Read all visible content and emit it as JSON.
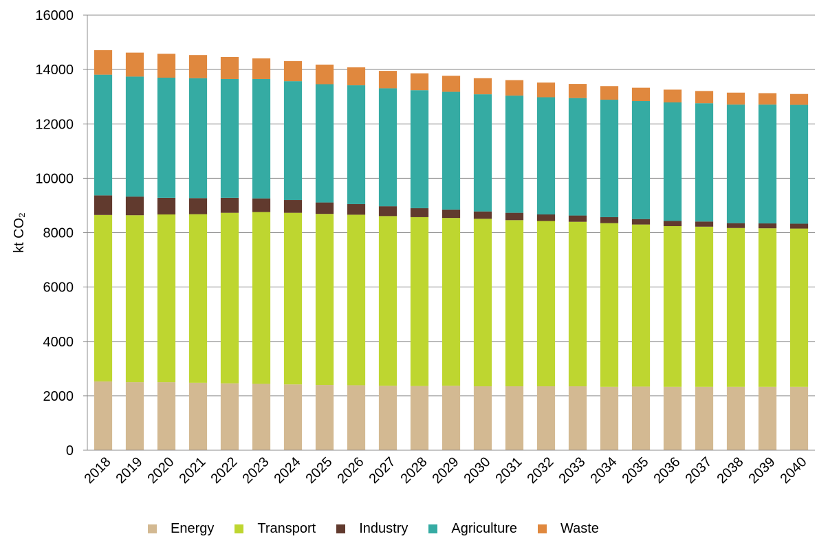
{
  "chart_data": {
    "type": "bar",
    "stacked": true,
    "ylabel": "kt CO₂",
    "ylim": [
      0,
      16000
    ],
    "yticks": [
      0,
      2000,
      4000,
      6000,
      8000,
      10000,
      12000,
      14000,
      16000
    ],
    "grid": true,
    "legend_position": "bottom",
    "categories": [
      "2018",
      "2019",
      "2020",
      "2021",
      "2022",
      "2023",
      "2024",
      "2025",
      "2026",
      "2027",
      "2028",
      "2029",
      "2030",
      "2031",
      "2032",
      "2033",
      "2034",
      "2035",
      "2036",
      "2037",
      "2038",
      "2039",
      "2040"
    ],
    "series": [
      {
        "name": "Energy",
        "color": "#d3b992",
        "values": [
          2530,
          2500,
          2500,
          2480,
          2460,
          2440,
          2420,
          2400,
          2390,
          2370,
          2360,
          2370,
          2350,
          2350,
          2350,
          2350,
          2330,
          2340,
          2330,
          2330,
          2330,
          2330,
          2330
        ]
      },
      {
        "name": "Transport",
        "color": "#bed630",
        "values": [
          6120,
          6140,
          6170,
          6200,
          6270,
          6320,
          6310,
          6290,
          6270,
          6240,
          6210,
          6170,
          6160,
          6110,
          6080,
          6050,
          6020,
          5960,
          5910,
          5890,
          5840,
          5830,
          5820
        ]
      },
      {
        "name": "Industry",
        "color": "#613a2e",
        "values": [
          720,
          690,
          610,
          590,
          550,
          500,
          470,
          420,
          390,
          360,
          330,
          310,
          270,
          270,
          240,
          230,
          220,
          200,
          190,
          190,
          180,
          180,
          180
        ]
      },
      {
        "name": "Agriculture",
        "color": "#35aba3",
        "values": [
          4440,
          4410,
          4420,
          4410,
          4370,
          4390,
          4370,
          4350,
          4370,
          4340,
          4340,
          4330,
          4310,
          4310,
          4310,
          4320,
          4320,
          4340,
          4360,
          4350,
          4360,
          4370,
          4370
        ]
      },
      {
        "name": "Waste",
        "color": "#e0883e",
        "values": [
          900,
          880,
          880,
          850,
          810,
          760,
          740,
          720,
          660,
          640,
          620,
          590,
          590,
          570,
          540,
          520,
          500,
          490,
          470,
          450,
          440,
          420,
          400
        ]
      }
    ]
  }
}
